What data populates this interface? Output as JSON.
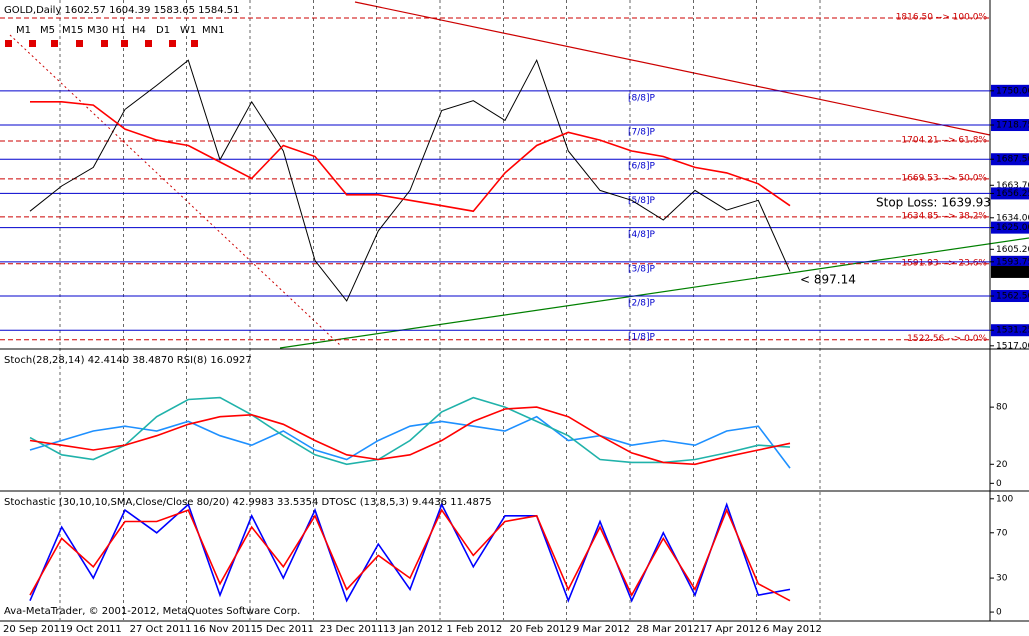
{
  "chart_data": [
    {
      "type": "line",
      "title": "GOLD,Daily  1602.57 1604.39 1583.65 1584.51",
      "timeframes": [
        "M1",
        "M5",
        "M15",
        "M30",
        "H1",
        "H4",
        "D1",
        "W1",
        "MN1"
      ],
      "categories": [
        "20 Sep 2011",
        null,
        "9 Oct 2011",
        null,
        "27 Oct 2011",
        null,
        "16 Nov 2011",
        null,
        "5 Dec 2011",
        null,
        "23 Dec 2011",
        null,
        "13 Jan 2012",
        null,
        "1 Feb 2012",
        null,
        "20 Feb 2012",
        null,
        "9 Mar 2012",
        null,
        "28 Mar 2012",
        null,
        "17 Apr 2012",
        null,
        "6 May 2012"
      ],
      "series": [
        {
          "color": "#000000",
          "values": [
            1640,
            1663,
            1680,
            1733,
            1755,
            1778,
            1687,
            1740,
            1695,
            1595,
            1558,
            1622,
            1659,
            1732,
            1741,
            1723,
            1778,
            1695,
            1659,
            1650,
            1632,
            1659,
            1641,
            1650,
            1585
          ]
        },
        {
          "color": "#ff0000",
          "values": [
            1740,
            1740,
            1737,
            1715,
            1705,
            1700,
            1685,
            1670,
            1700,
            1690,
            1655,
            1655,
            1650,
            1645,
            1640,
            1675,
            1700,
            1712,
            1705,
            1695,
            1690,
            1680,
            1675,
            1665,
            1645
          ]
        }
      ],
      "ylim": [
        1515,
        1833
      ],
      "yticks": [
        {
          "value": 1750,
          "label": "1750.00"
        },
        {
          "value": 1718.75,
          "label": "1718.75"
        },
        {
          "value": 1687.5,
          "label": "1687.50"
        },
        {
          "value": 1663.7,
          "label": "1663.70"
        },
        {
          "value": 1656.25,
          "label": "1656.25"
        },
        {
          "value": 1634,
          "label": "1634.00"
        },
        {
          "value": 1625,
          "label": "1625.00"
        },
        {
          "value": 1605.2,
          "label": "1605.20"
        },
        {
          "value": 1593.75,
          "label": "1593.75"
        },
        {
          "value": 1562.5,
          "label": "1562.50"
        },
        {
          "value": 1531.25,
          "label": "1531.25"
        },
        {
          "value": 1517,
          "label": "1517.00"
        }
      ],
      "price_label": {
        "value": 1584.51,
        "label": "1584.51"
      },
      "murrey_levels": [
        {
          "value": 1750,
          "label": "[8/8]P"
        },
        {
          "value": 1718.75,
          "label": "[7/8]P"
        },
        {
          "value": 1687.5,
          "label": "[6/8]P"
        },
        {
          "value": 1656.25,
          "label": "[5/8]P"
        },
        {
          "value": 1625,
          "label": "[4/8]P"
        },
        {
          "value": 1593.75,
          "label": "[3/8]P"
        },
        {
          "value": 1562.5,
          "label": "[2/8]P"
        },
        {
          "value": 1531.25,
          "label": "[1/8]P"
        }
      ],
      "fib_levels": [
        {
          "value": 1816.5,
          "label": "1816.50 --> 100.0%"
        },
        {
          "value": 1704.21,
          "label": "1704.21 --> 61.8%"
        },
        {
          "value": 1669.53,
          "label": "1669.53 --> 50.0%"
        },
        {
          "value": 1634.85,
          "label": "1634.85 --> 38.2%"
        },
        {
          "value": 1591.93,
          "label": "1591.93 --> 23.6%"
        },
        {
          "value": 1522.56,
          "label": "1522.56 --> 0.0%"
        }
      ],
      "annotations": [
        "Stop Loss: 1639.93",
        "< 897.14"
      ]
    },
    {
      "type": "line",
      "title": "Stoch(28,28,14) 42.4140 38.4870 RSI(8) 16.0927",
      "series": [
        {
          "color": "#1e90ff",
          "values": [
            35,
            45,
            55,
            60,
            55,
            65,
            50,
            40,
            55,
            35,
            25,
            45,
            60,
            65,
            60,
            55,
            70,
            45,
            50,
            40,
            45,
            40,
            55,
            60,
            16
          ]
        },
        {
          "color": "#20b2aa",
          "values": [
            48,
            30,
            25,
            40,
            70,
            88,
            90,
            72,
            50,
            30,
            20,
            25,
            45,
            75,
            90,
            80,
            65,
            50,
            25,
            22,
            22,
            25,
            32,
            40,
            38
          ]
        },
        {
          "color": "#ff0000",
          "values": [
            45,
            40,
            35,
            40,
            50,
            62,
            70,
            72,
            62,
            45,
            30,
            25,
            30,
            45,
            65,
            78,
            80,
            70,
            50,
            32,
            22,
            20,
            28,
            35,
            42
          ]
        }
      ],
      "ylim": [
        -7,
        140
      ],
      "yticks": [
        80,
        20,
        0
      ]
    },
    {
      "type": "line",
      "title": "Stochastic (30,10,10,SMA,Close/Close 80/20) 42.9983 33.5354 DTOSC (13,8,5,3) 9.4436 11.4875",
      "series": [
        {
          "color": "#0000ff",
          "values": [
            10,
            75,
            30,
            90,
            70,
            95,
            15,
            85,
            30,
            90,
            10,
            60,
            20,
            95,
            40,
            85,
            85,
            10,
            80,
            10,
            70,
            15,
            95,
            15,
            20
          ]
        },
        {
          "color": "#ff0000",
          "values": [
            15,
            65,
            40,
            80,
            80,
            90,
            25,
            75,
            40,
            85,
            20,
            50,
            30,
            90,
            50,
            80,
            85,
            20,
            75,
            15,
            65,
            20,
            90,
            25,
            10
          ]
        }
      ],
      "ylim": [
        -7,
        106
      ],
      "yticks": [
        100,
        70,
        30,
        0
      ],
      "annotation": "Ava-MetaTrader, © 2001-2012, MetaQuotes Software Corp."
    }
  ]
}
